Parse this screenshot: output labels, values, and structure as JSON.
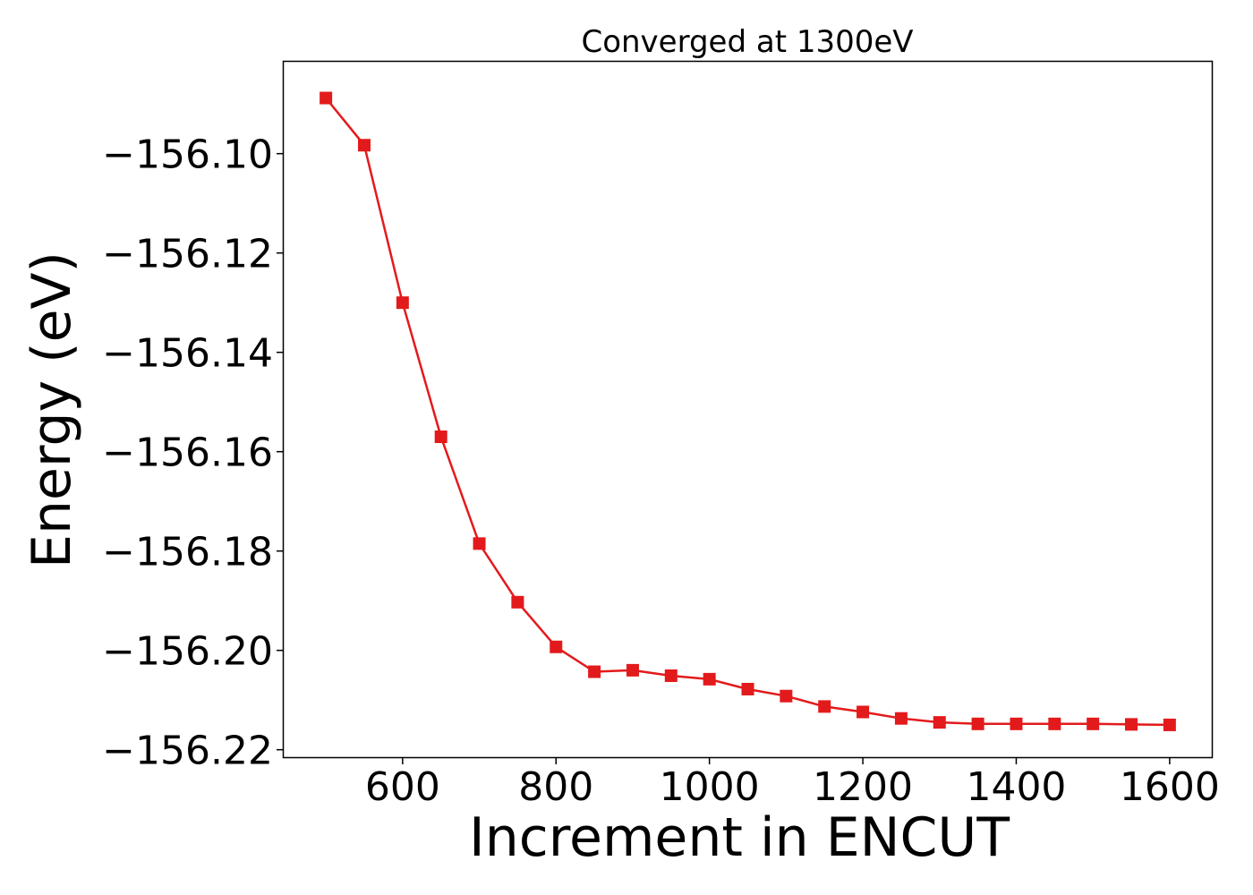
{
  "chart_data": {
    "type": "line",
    "title": "Converged at 1300eV",
    "xlabel": "Increment in ENCUT",
    "ylabel": "Energy (eV)",
    "xlim": [
      445,
      1655
    ],
    "ylim": [
      -156.2215,
      -156.0815
    ],
    "xticks": [
      600,
      800,
      1000,
      1200,
      1400,
      1600
    ],
    "yticks": [
      -156.1,
      -156.12,
      -156.14,
      -156.16,
      -156.18,
      -156.2,
      -156.22
    ],
    "ytick_labels": [
      "−156.10",
      "−156.12",
      "−156.14",
      "−156.16",
      "−156.18",
      "−156.20",
      "−156.22"
    ],
    "grid": false,
    "color": "#e31a1c",
    "marker": "square",
    "series": [
      {
        "x": [
          500,
          550,
          600,
          650,
          700,
          750,
          800,
          850,
          900,
          950,
          1000,
          1050,
          1100,
          1150,
          1200,
          1250,
          1300,
          1350,
          1400,
          1450,
          1500,
          1550,
          1600
        ],
        "values": [
          -156.0888,
          -156.0983,
          -156.13,
          -156.157,
          -156.1785,
          -156.1903,
          -156.1993,
          -156.2043,
          -156.204,
          -156.2051,
          -156.2058,
          -156.2078,
          -156.2092,
          -156.2113,
          -156.2124,
          -156.2137,
          -156.2145,
          -156.2148,
          -156.2148,
          -156.2148,
          -156.2148,
          -156.2149,
          -156.215
        ]
      }
    ]
  }
}
